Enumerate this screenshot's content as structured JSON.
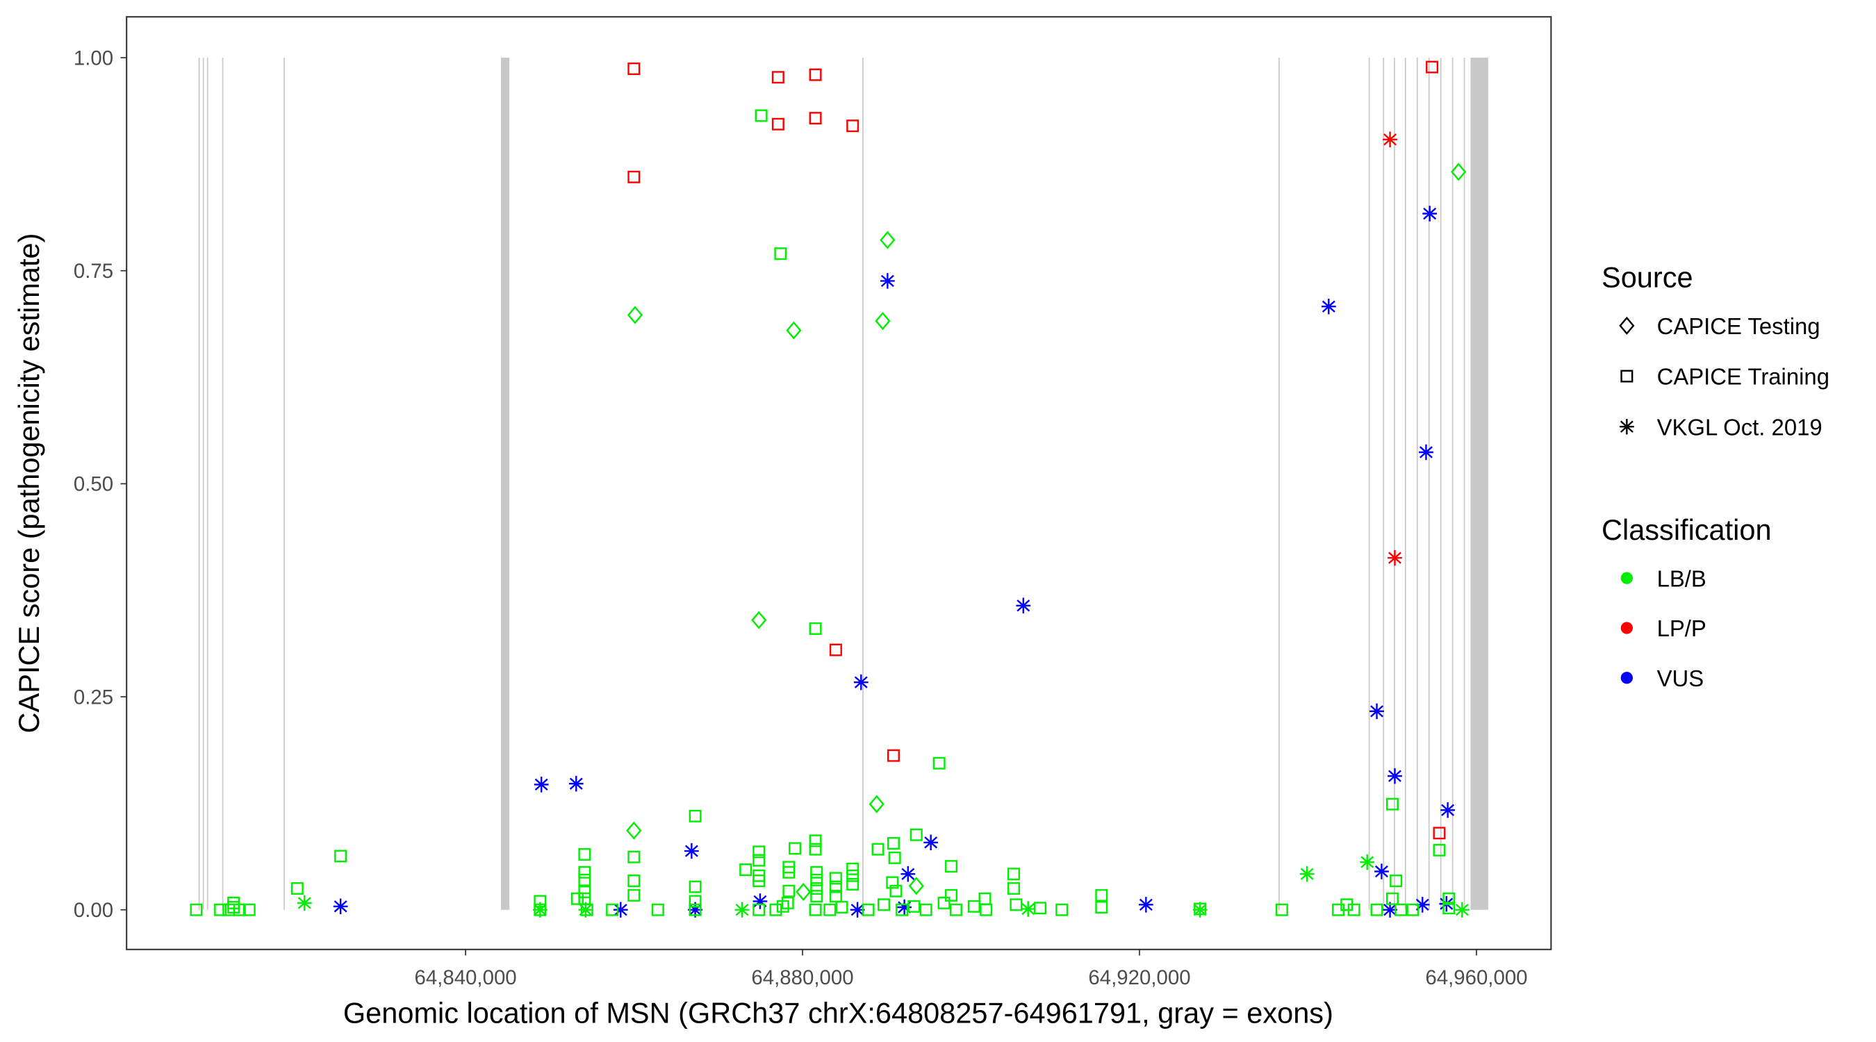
{
  "chart_data": {
    "type": "scatter",
    "xlabel": "Genomic location of MSN (GRCh37 chrX:64808257-64961791, gray = exons)",
    "ylabel": "CAPICE score (pathogenicity estimate)",
    "xlim": [
      64799760,
      64968850
    ],
    "ylim": [
      -0.046,
      1.05
    ],
    "x_ticks": [
      {
        "v": 64840000,
        "label": "64,840,000"
      },
      {
        "v": 64880000,
        "label": "64,880,000"
      },
      {
        "v": 64920000,
        "label": "64,920,000"
      },
      {
        "v": 64960000,
        "label": "64,960,000"
      }
    ],
    "y_ticks": [
      {
        "v": 0,
        "label": "0.00"
      },
      {
        "v": 0.25,
        "label": "0.25"
      },
      {
        "v": 0.5,
        "label": "0.50"
      },
      {
        "v": 0.75,
        "label": "0.75"
      },
      {
        "v": 1,
        "label": "1.00"
      }
    ],
    "grid": false,
    "legend_position": "right",
    "legend": {
      "source_title": "Source",
      "sources": [
        {
          "key": "T",
          "label": "CAPICE Testing",
          "shape": "diamond"
        },
        {
          "key": "R",
          "label": "CAPICE Training",
          "shape": "square"
        },
        {
          "key": "V",
          "label": "VKGL Oct. 2019",
          "shape": "asterisk"
        }
      ],
      "class_title": "Classification",
      "classes": [
        {
          "key": "B",
          "label": "LB/B",
          "color": "#00ee00"
        },
        {
          "key": "P",
          "label": "LP/P",
          "color": "#ff0000"
        },
        {
          "key": "U",
          "label": "VUS",
          "color": "#0000ff"
        }
      ]
    },
    "exon_color": "#c8c8c8",
    "exons": [
      [
        64808300,
        64808450
      ],
      [
        64808800,
        64808900
      ],
      [
        64809300,
        64809400
      ],
      [
        64811100,
        64811200
      ],
      [
        64818400,
        64818500
      ],
      [
        64844200,
        64845200
      ],
      [
        64887100,
        64887200
      ],
      [
        64936500,
        64936600
      ],
      [
        64947200,
        64947300
      ],
      [
        64948900,
        64949000
      ],
      [
        64950200,
        64950300
      ],
      [
        64951500,
        64951600
      ],
      [
        64952900,
        64953000
      ],
      [
        64954300,
        64954400
      ],
      [
        64955700,
        64955800
      ],
      [
        64957100,
        64957200
      ],
      [
        64958500,
        64958600
      ],
      [
        64959300,
        64961400
      ]
    ],
    "points": [
      [
        64859980,
        0.987,
        "R",
        "P"
      ],
      [
        64877100,
        0.977,
        "R",
        "P"
      ],
      [
        64881530,
        0.98,
        "R",
        "P"
      ],
      [
        64877100,
        0.922,
        "R",
        "P"
      ],
      [
        64881530,
        0.929,
        "R",
        "P"
      ],
      [
        64885950,
        0.92,
        "R",
        "P"
      ],
      [
        64859980,
        0.86,
        "R",
        "P"
      ],
      [
        64883950,
        0.305,
        "R",
        "P"
      ],
      [
        64890800,
        0.181,
        "R",
        "P"
      ],
      [
        64954730,
        0.989,
        "R",
        "P"
      ],
      [
        64955590,
        0.09,
        "R",
        "P"
      ],
      [
        64949740,
        0.904,
        "V",
        "P"
      ],
      [
        64950310,
        0.413,
        "V",
        "P"
      ],
      [
        64890090,
        0.738,
        "V",
        "U"
      ],
      [
        64942460,
        0.708,
        "V",
        "U"
      ],
      [
        64954450,
        0.817,
        "V",
        "U"
      ],
      [
        64954020,
        0.537,
        "V",
        "U"
      ],
      [
        64906210,
        0.357,
        "V",
        "U"
      ],
      [
        64886950,
        0.267,
        "V",
        "U"
      ],
      [
        64948170,
        0.233,
        "V",
        "U"
      ],
      [
        64950310,
        0.157,
        "V",
        "U"
      ],
      [
        64956590,
        0.117,
        "V",
        "U"
      ],
      [
        64849000,
        0.147,
        "V",
        "U"
      ],
      [
        64853130,
        0.148,
        "V",
        "U"
      ],
      [
        64895230,
        0.079,
        "V",
        "U"
      ],
      [
        64866830,
        0.069,
        "V",
        "U"
      ],
      [
        64892520,
        0.042,
        "V",
        "U"
      ],
      [
        64948740,
        0.045,
        "V",
        "U"
      ],
      [
        64825160,
        0.004,
        "V",
        "U"
      ],
      [
        64858410,
        0,
        "V",
        "U"
      ],
      [
        64867260,
        0,
        "V",
        "U"
      ],
      [
        64874960,
        0.01,
        "V",
        "U"
      ],
      [
        64886520,
        0,
        "V",
        "U"
      ],
      [
        64892090,
        0.003,
        "V",
        "U"
      ],
      [
        64920770,
        0.006,
        "V",
        "U"
      ],
      [
        64949740,
        0,
        "V",
        "U"
      ],
      [
        64953590,
        0.006,
        "V",
        "U"
      ],
      [
        64956440,
        0.007,
        "V",
        "U"
      ],
      [
        64957870,
        0.866,
        "T",
        "B"
      ],
      [
        64890090,
        0.786,
        "T",
        "B"
      ],
      [
        64860120,
        0.698,
        "T",
        "B"
      ],
      [
        64889520,
        0.691,
        "T",
        "B"
      ],
      [
        64878960,
        0.68,
        "T",
        "B"
      ],
      [
        64874820,
        0.34,
        "T",
        "B"
      ],
      [
        64888800,
        0.124,
        "T",
        "B"
      ],
      [
        64859980,
        0.093,
        "T",
        "B"
      ],
      [
        64893510,
        0.028,
        "T",
        "B"
      ],
      [
        64880100,
        0.021,
        "T",
        "B"
      ],
      [
        64820880,
        0.008,
        "V",
        "B"
      ],
      [
        64939890,
        0.042,
        "V",
        "B"
      ],
      [
        64947030,
        0.056,
        "V",
        "B"
      ],
      [
        64848850,
        0,
        "V",
        "B"
      ],
      [
        64854260,
        0,
        "V",
        "B"
      ],
      [
        64872820,
        0,
        "V",
        "B"
      ],
      [
        64927190,
        0,
        "V",
        "B"
      ],
      [
        64958300,
        0,
        "V",
        "B"
      ],
      [
        64906780,
        0.001,
        "V",
        "B"
      ],
      [
        64875100,
        0.932,
        "R",
        "B"
      ],
      [
        64877390,
        0.77,
        "R",
        "B"
      ],
      [
        64881530,
        0.33,
        "R",
        "B"
      ],
      [
        64896220,
        0.172,
        "R",
        "B"
      ],
      [
        64950020,
        0.124,
        "R",
        "B"
      ],
      [
        64867260,
        0.11,
        "R",
        "B"
      ],
      [
        64825160,
        0.063,
        "R",
        "B"
      ],
      [
        64955590,
        0.07,
        "R",
        "B"
      ],
      [
        64820020,
        0.025,
        "R",
        "B"
      ],
      [
        64950450,
        0.034,
        "R",
        "B"
      ],
      [
        64854130,
        0.065,
        "R",
        "B"
      ],
      [
        64854130,
        0.044,
        "R",
        "B"
      ],
      [
        64854130,
        0.035,
        "R",
        "B"
      ],
      [
        64854130,
        0.021,
        "R",
        "B"
      ],
      [
        64854130,
        0.013,
        "R",
        "B"
      ],
      [
        64859980,
        0.062,
        "R",
        "B"
      ],
      [
        64859980,
        0.034,
        "R",
        "B"
      ],
      [
        64859980,
        0.017,
        "R",
        "B"
      ],
      [
        64867260,
        0.027,
        "R",
        "B"
      ],
      [
        64867260,
        0.01,
        "R",
        "B"
      ],
      [
        64874820,
        0.068,
        "R",
        "B"
      ],
      [
        64874820,
        0.058,
        "R",
        "B"
      ],
      [
        64874820,
        0.04,
        "R",
        "B"
      ],
      [
        64874820,
        0.034,
        "R",
        "B"
      ],
      [
        64873250,
        0.047,
        "R",
        "B"
      ],
      [
        64878380,
        0.05,
        "R",
        "B"
      ],
      [
        64878380,
        0.044,
        "R",
        "B"
      ],
      [
        64879100,
        0.072,
        "R",
        "B"
      ],
      [
        64878380,
        0.022,
        "R",
        "B"
      ],
      [
        64881530,
        0.081,
        "R",
        "B"
      ],
      [
        64881530,
        0.071,
        "R",
        "B"
      ],
      [
        64881670,
        0.044,
        "R",
        "B"
      ],
      [
        64881670,
        0.035,
        "R",
        "B"
      ],
      [
        64881670,
        0.025,
        "R",
        "B"
      ],
      [
        64881670,
        0.016,
        "R",
        "B"
      ],
      [
        64883950,
        0.037,
        "R",
        "B"
      ],
      [
        64883950,
        0.027,
        "R",
        "B"
      ],
      [
        64883950,
        0.016,
        "R",
        "B"
      ],
      [
        64885950,
        0.048,
        "R",
        "B"
      ],
      [
        64885950,
        0.04,
        "R",
        "B"
      ],
      [
        64885950,
        0.03,
        "R",
        "B"
      ],
      [
        64888950,
        0.071,
        "R",
        "B"
      ],
      [
        64890800,
        0.078,
        "R",
        "B"
      ],
      [
        64890940,
        0.061,
        "R",
        "B"
      ],
      [
        64890660,
        0.032,
        "R",
        "B"
      ],
      [
        64891090,
        0.022,
        "R",
        "B"
      ],
      [
        64893510,
        0.088,
        "R",
        "B"
      ],
      [
        64897650,
        0.051,
        "R",
        "B"
      ],
      [
        64897650,
        0.017,
        "R",
        "B"
      ],
      [
        64905070,
        0.042,
        "R",
        "B"
      ],
      [
        64905070,
        0.025,
        "R",
        "B"
      ],
      [
        64901650,
        0.013,
        "R",
        "B"
      ],
      [
        64915490,
        0.017,
        "R",
        "B"
      ],
      [
        64848850,
        0.01,
        "R",
        "B"
      ],
      [
        64853270,
        0.013,
        "R",
        "B"
      ],
      [
        64944600,
        0.006,
        "R",
        "B"
      ],
      [
        64950020,
        0.013,
        "R",
        "B"
      ],
      [
        64956730,
        0.013,
        "R",
        "B"
      ],
      [
        64808030,
        0,
        "R",
        "B"
      ],
      [
        64810890,
        0,
        "R",
        "B"
      ],
      [
        64811890,
        0,
        "R",
        "B"
      ],
      [
        64812460,
        0.003,
        "R",
        "B"
      ],
      [
        64812460,
        0.008,
        "R",
        "B"
      ],
      [
        64813170,
        0,
        "R",
        "B"
      ],
      [
        64814320,
        0,
        "R",
        "B"
      ],
      [
        64848850,
        0,
        "R",
        "B"
      ],
      [
        64854410,
        0,
        "R",
        "B"
      ],
      [
        64857410,
        0,
        "R",
        "B"
      ],
      [
        64862830,
        0,
        "R",
        "B"
      ],
      [
        64867260,
        0,
        "R",
        "B"
      ],
      [
        64874820,
        0,
        "R",
        "B"
      ],
      [
        64876820,
        0,
        "R",
        "B"
      ],
      [
        64877670,
        0.004,
        "R",
        "B"
      ],
      [
        64878240,
        0.008,
        "R",
        "B"
      ],
      [
        64881530,
        0,
        "R",
        "B"
      ],
      [
        64883240,
        0,
        "R",
        "B"
      ],
      [
        64884660,
        0.003,
        "R",
        "B"
      ],
      [
        64887800,
        0,
        "R",
        "B"
      ],
      [
        64889650,
        0.006,
        "R",
        "B"
      ],
      [
        64891800,
        0,
        "R",
        "B"
      ],
      [
        64893230,
        0.004,
        "R",
        "B"
      ],
      [
        64894650,
        0,
        "R",
        "B"
      ],
      [
        64896790,
        0.008,
        "R",
        "B"
      ],
      [
        64898220,
        0,
        "R",
        "B"
      ],
      [
        64900360,
        0.004,
        "R",
        "B"
      ],
      [
        64901790,
        0,
        "R",
        "B"
      ],
      [
        64905350,
        0.006,
        "R",
        "B"
      ],
      [
        64908210,
        0.002,
        "R",
        "B"
      ],
      [
        64910780,
        0,
        "R",
        "B"
      ],
      [
        64915490,
        0.003,
        "R",
        "B"
      ],
      [
        64927190,
        0.001,
        "R",
        "B"
      ],
      [
        64936900,
        0,
        "R",
        "B"
      ],
      [
        64943600,
        0,
        "R",
        "B"
      ],
      [
        64945460,
        0,
        "R",
        "B"
      ],
      [
        64948170,
        0,
        "R",
        "B"
      ],
      [
        64951030,
        0,
        "R",
        "B"
      ],
      [
        64952450,
        0,
        "R",
        "B"
      ],
      [
        64956730,
        0.002,
        "R",
        "B"
      ]
    ]
  }
}
